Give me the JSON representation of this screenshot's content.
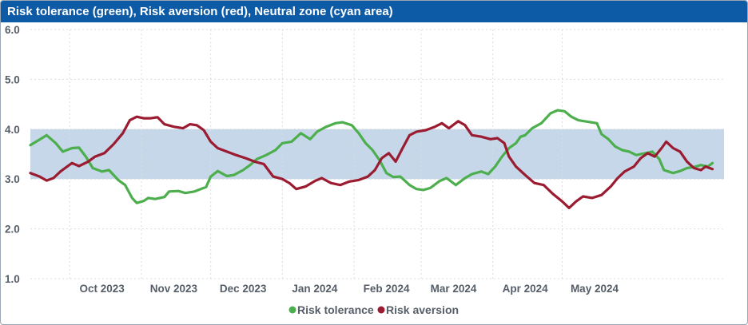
{
  "window": {
    "title": "Risk tolerance (green), Risk aversion (red), Neutral zone (cyan area)"
  },
  "chart_data": {
    "type": "line",
    "title": "Risk tolerance (green), Risk aversion (red), Neutral zone (cyan area)",
    "xlabel": "",
    "ylabel": "",
    "ylim": [
      1.0,
      6.0
    ],
    "yticks": [
      "1.0",
      "2.0",
      "3.0",
      "4.0",
      "5.0",
      "6.0"
    ],
    "xticks": [
      "Oct 2023",
      "Nov 2023",
      "Dec 2023",
      "Jan 2024",
      "Feb 2024",
      "Mar 2024",
      "Apr 2024",
      "May 2024"
    ],
    "grid": true,
    "legend_position": "bottom-center",
    "neutral_zone": {
      "low": 3.0,
      "high": 4.0,
      "color": "#c5d7e8"
    },
    "series": [
      {
        "name": "Risk tolerance",
        "color": "#4cae4c",
        "points": [
          [
            "2023-09-14",
            3.68
          ],
          [
            "2023-09-19",
            3.82
          ],
          [
            "2023-09-21",
            3.88
          ],
          [
            "2023-09-25",
            3.72
          ],
          [
            "2023-09-28",
            3.55
          ],
          [
            "2023-10-02",
            3.62
          ],
          [
            "2023-10-05",
            3.63
          ],
          [
            "2023-10-08",
            3.45
          ],
          [
            "2023-10-11",
            3.22
          ],
          [
            "2023-10-15",
            3.15
          ],
          [
            "2023-10-18",
            3.18
          ],
          [
            "2023-10-22",
            2.98
          ],
          [
            "2023-10-25",
            2.88
          ],
          [
            "2023-10-28",
            2.62
          ],
          [
            "2023-10-30",
            2.52
          ],
          [
            "2023-11-02",
            2.56
          ],
          [
            "2023-11-04",
            2.62
          ],
          [
            "2023-11-07",
            2.6
          ],
          [
            "2023-11-11",
            2.64
          ],
          [
            "2023-11-13",
            2.75
          ],
          [
            "2023-11-17",
            2.76
          ],
          [
            "2023-11-20",
            2.72
          ],
          [
            "2023-11-24",
            2.75
          ],
          [
            "2023-11-29",
            2.84
          ],
          [
            "2023-12-01",
            3.05
          ],
          [
            "2023-12-04",
            3.16
          ],
          [
            "2023-12-08",
            3.06
          ],
          [
            "2023-12-11",
            3.08
          ],
          [
            "2023-12-15",
            3.18
          ],
          [
            "2023-12-18",
            3.28
          ],
          [
            "2023-12-21",
            3.4
          ],
          [
            "2023-12-25",
            3.48
          ],
          [
            "2023-12-29",
            3.58
          ],
          [
            "2024-01-01",
            3.72
          ],
          [
            "2024-01-05",
            3.75
          ],
          [
            "2024-01-09",
            3.92
          ],
          [
            "2024-01-13",
            3.8
          ],
          [
            "2024-01-16",
            3.95
          ],
          [
            "2024-01-20",
            4.05
          ],
          [
            "2024-01-24",
            4.12
          ],
          [
            "2024-01-27",
            4.14
          ],
          [
            "2024-01-31",
            4.08
          ],
          [
            "2024-02-03",
            3.92
          ],
          [
            "2024-02-06",
            3.72
          ],
          [
            "2024-02-09",
            3.58
          ],
          [
            "2024-02-12",
            3.38
          ],
          [
            "2024-02-15",
            3.12
          ],
          [
            "2024-02-18",
            3.04
          ],
          [
            "2024-02-21",
            3.05
          ],
          [
            "2024-02-25",
            2.88
          ],
          [
            "2024-02-28",
            2.8
          ],
          [
            "2024-03-02",
            2.78
          ],
          [
            "2024-03-05",
            2.82
          ],
          [
            "2024-03-09",
            2.96
          ],
          [
            "2024-03-12",
            3.02
          ],
          [
            "2024-03-16",
            2.88
          ],
          [
            "2024-03-20",
            3.02
          ],
          [
            "2024-03-23",
            3.1
          ],
          [
            "2024-03-27",
            3.15
          ],
          [
            "2024-03-30",
            3.1
          ],
          [
            "2024-04-02",
            3.25
          ],
          [
            "2024-04-05",
            3.45
          ],
          [
            "2024-04-08",
            3.62
          ],
          [
            "2024-04-11",
            3.72
          ],
          [
            "2024-04-13",
            3.85
          ],
          [
            "2024-04-15",
            3.88
          ],
          [
            "2024-04-18",
            4.02
          ],
          [
            "2024-04-22",
            4.12
          ],
          [
            "2024-04-26",
            4.32
          ],
          [
            "2024-04-29",
            4.38
          ],
          [
            "2024-05-02",
            4.36
          ],
          [
            "2024-05-05",
            4.25
          ],
          [
            "2024-05-08",
            4.18
          ],
          [
            "2024-05-12",
            4.15
          ],
          [
            "2024-05-16",
            4.12
          ],
          [
            "2024-05-18",
            3.9
          ],
          [
            "2024-05-21",
            3.8
          ],
          [
            "2024-05-24",
            3.65
          ],
          [
            "2024-05-27",
            3.58
          ],
          [
            "2024-05-30",
            3.55
          ],
          [
            "2024-06-02",
            3.48
          ],
          [
            "2024-06-06",
            3.52
          ],
          [
            "2024-06-09",
            3.55
          ],
          [
            "2024-06-12",
            3.4
          ],
          [
            "2024-06-14",
            3.18
          ],
          [
            "2024-06-18",
            3.12
          ],
          [
            "2024-06-21",
            3.16
          ],
          [
            "2024-06-24",
            3.22
          ],
          [
            "2024-06-27",
            3.24
          ],
          [
            "2024-06-30",
            3.28
          ],
          [
            "2024-07-03",
            3.25
          ],
          [
            "2024-07-05",
            3.32
          ]
        ]
      },
      {
        "name": "Risk aversion",
        "color": "#9b1b30",
        "points": [
          [
            "2023-09-14",
            3.12
          ],
          [
            "2023-09-18",
            3.05
          ],
          [
            "2023-09-21",
            2.97
          ],
          [
            "2023-09-24",
            3.02
          ],
          [
            "2023-09-27",
            3.15
          ],
          [
            "2023-09-29",
            3.22
          ],
          [
            "2023-10-02",
            3.32
          ],
          [
            "2023-10-05",
            3.26
          ],
          [
            "2023-10-09",
            3.35
          ],
          [
            "2023-10-12",
            3.45
          ],
          [
            "2023-10-16",
            3.52
          ],
          [
            "2023-10-20",
            3.7
          ],
          [
            "2023-10-24",
            3.92
          ],
          [
            "2023-10-27",
            4.18
          ],
          [
            "2023-10-30",
            4.25
          ],
          [
            "2023-11-02",
            4.22
          ],
          [
            "2023-11-05",
            4.22
          ],
          [
            "2023-11-08",
            4.24
          ],
          [
            "2023-11-11",
            4.1
          ],
          [
            "2023-11-15",
            4.05
          ],
          [
            "2023-11-19",
            4.02
          ],
          [
            "2023-11-22",
            4.1
          ],
          [
            "2023-11-25",
            4.08
          ],
          [
            "2023-11-28",
            3.98
          ],
          [
            "2023-12-01",
            3.75
          ],
          [
            "2023-12-04",
            3.62
          ],
          [
            "2023-12-08",
            3.55
          ],
          [
            "2023-12-12",
            3.48
          ],
          [
            "2023-12-16",
            3.42
          ],
          [
            "2023-12-20",
            3.35
          ],
          [
            "2023-12-24",
            3.3
          ],
          [
            "2023-12-28",
            3.05
          ],
          [
            "2024-01-01",
            3.0
          ],
          [
            "2024-01-04",
            2.92
          ],
          [
            "2024-01-07",
            2.8
          ],
          [
            "2024-01-11",
            2.85
          ],
          [
            "2024-01-15",
            2.96
          ],
          [
            "2024-01-18",
            3.02
          ],
          [
            "2024-01-22",
            2.92
          ],
          [
            "2024-01-26",
            2.88
          ],
          [
            "2024-01-30",
            2.95
          ],
          [
            "2024-02-03",
            2.98
          ],
          [
            "2024-02-07",
            3.05
          ],
          [
            "2024-02-10",
            3.18
          ],
          [
            "2024-02-13",
            3.42
          ],
          [
            "2024-02-16",
            3.52
          ],
          [
            "2024-02-19",
            3.35
          ],
          [
            "2024-02-22",
            3.62
          ],
          [
            "2024-02-25",
            3.88
          ],
          [
            "2024-02-28",
            3.95
          ],
          [
            "2024-03-03",
            3.98
          ],
          [
            "2024-03-07",
            4.05
          ],
          [
            "2024-03-10",
            4.12
          ],
          [
            "2024-03-13",
            4.02
          ],
          [
            "2024-03-17",
            4.16
          ],
          [
            "2024-03-20",
            4.08
          ],
          [
            "2024-03-23",
            3.88
          ],
          [
            "2024-03-27",
            3.85
          ],
          [
            "2024-03-31",
            3.8
          ],
          [
            "2024-04-03",
            3.82
          ],
          [
            "2024-04-06",
            3.72
          ],
          [
            "2024-04-08",
            3.45
          ],
          [
            "2024-04-11",
            3.25
          ],
          [
            "2024-04-15",
            3.08
          ],
          [
            "2024-04-19",
            2.92
          ],
          [
            "2024-04-23",
            2.88
          ],
          [
            "2024-04-27",
            2.7
          ],
          [
            "2024-05-01",
            2.55
          ],
          [
            "2024-05-04",
            2.42
          ],
          [
            "2024-05-07",
            2.55
          ],
          [
            "2024-05-10",
            2.65
          ],
          [
            "2024-05-14",
            2.62
          ],
          [
            "2024-05-18",
            2.68
          ],
          [
            "2024-05-22",
            2.85
          ],
          [
            "2024-05-25",
            3.02
          ],
          [
            "2024-05-28",
            3.15
          ],
          [
            "2024-06-01",
            3.25
          ],
          [
            "2024-06-04",
            3.42
          ],
          [
            "2024-06-07",
            3.52
          ],
          [
            "2024-06-10",
            3.45
          ],
          [
            "2024-06-13",
            3.62
          ],
          [
            "2024-06-15",
            3.75
          ],
          [
            "2024-06-18",
            3.62
          ],
          [
            "2024-06-21",
            3.55
          ],
          [
            "2024-06-24",
            3.35
          ],
          [
            "2024-06-27",
            3.22
          ],
          [
            "2024-06-30",
            3.18
          ],
          [
            "2024-07-02",
            3.25
          ],
          [
            "2024-07-05",
            3.2
          ]
        ]
      }
    ]
  }
}
